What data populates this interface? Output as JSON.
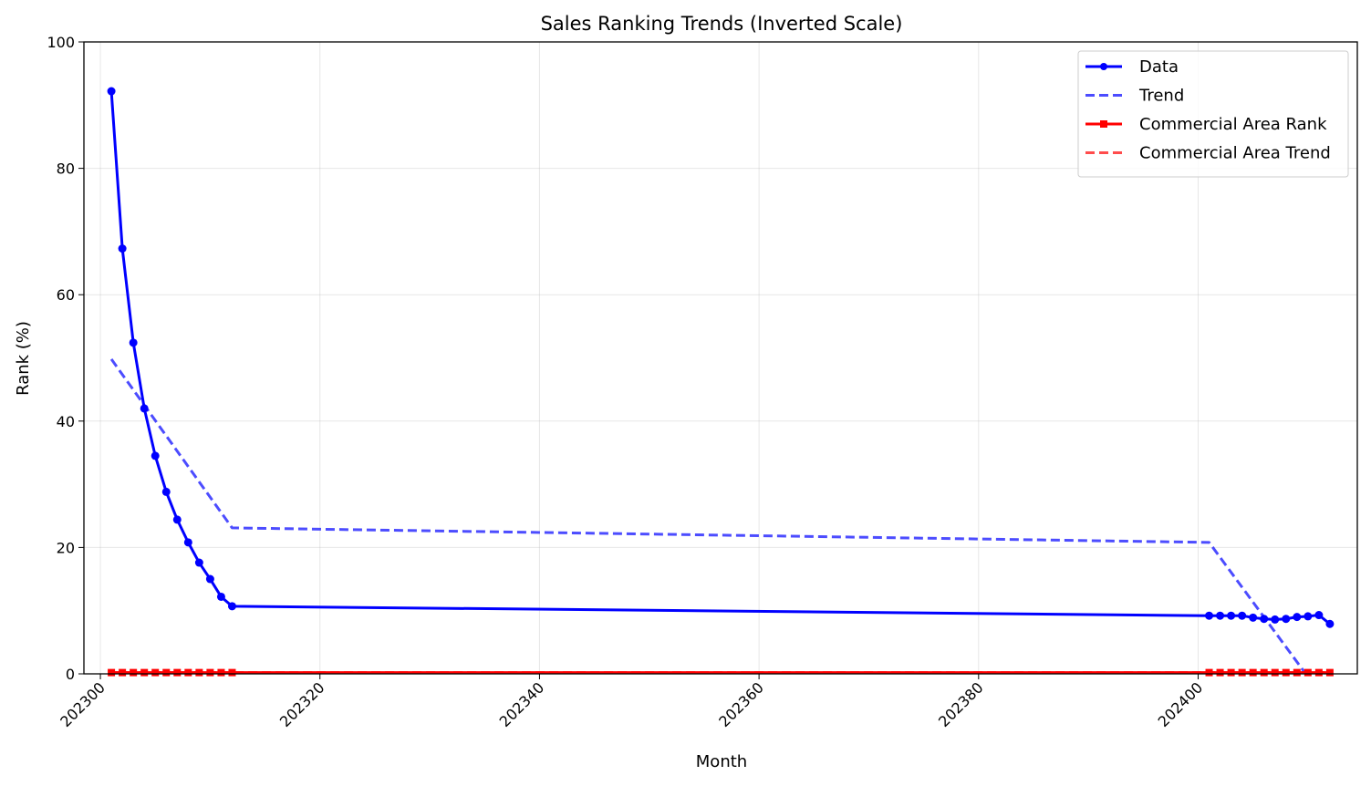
{
  "chart_data": {
    "type": "line",
    "title": "Sales Ranking Trends (Inverted Scale)",
    "xlabel": "Month",
    "ylabel": "Rank (%)",
    "xlim": [
      202298.5,
      202414.5
    ],
    "ylim": [
      0,
      100
    ],
    "xticks": [
      202300,
      202320,
      202340,
      202360,
      202380,
      202400
    ],
    "yticks": [
      0,
      20,
      40,
      60,
      80,
      100
    ],
    "grid": true,
    "legend_position": "top-right",
    "series": [
      {
        "name": "Data",
        "color": "#0000ff",
        "style": "solid",
        "marker": "circle",
        "x": [
          202301,
          202302,
          202303,
          202304,
          202305,
          202306,
          202307,
          202308,
          202309,
          202310,
          202311,
          202312,
          202401,
          202402,
          202403,
          202404,
          202405,
          202406,
          202407,
          202408,
          202409,
          202410,
          202411,
          202412
        ],
        "y": [
          92.2,
          67.3,
          52.4,
          42.0,
          34.5,
          28.8,
          24.4,
          20.8,
          17.6,
          15.0,
          12.2,
          10.7,
          9.2,
          9.2,
          9.2,
          9.2,
          8.9,
          8.7,
          8.6,
          8.7,
          9.0,
          9.1,
          9.3,
          7.9
        ]
      },
      {
        "name": "Trend",
        "color": "#0000ff",
        "opacity": 0.7,
        "style": "dashed",
        "marker": "none",
        "x": [
          202301,
          202312,
          202401,
          202409.8
        ],
        "y": [
          49.8,
          23.1,
          20.8,
          0
        ]
      },
      {
        "name": "Commercial Area Rank",
        "color": "#ff0000",
        "style": "solid",
        "marker": "square",
        "x": [
          202301,
          202302,
          202303,
          202304,
          202305,
          202306,
          202307,
          202308,
          202309,
          202310,
          202311,
          202312,
          202401,
          202402,
          202403,
          202404,
          202405,
          202406,
          202407,
          202408,
          202409,
          202410,
          202411,
          202412
        ],
        "y": [
          0.2,
          0.2,
          0.2,
          0.2,
          0.2,
          0.2,
          0.2,
          0.2,
          0.2,
          0.2,
          0.2,
          0.2,
          0.2,
          0.2,
          0.2,
          0.2,
          0.2,
          0.2,
          0.2,
          0.2,
          0.2,
          0.2,
          0.2,
          0.2
        ]
      },
      {
        "name": "Commercial Area Trend",
        "color": "#ff0000",
        "opacity": 0.7,
        "style": "dashed",
        "marker": "none",
        "x": [
          202301,
          202412
        ],
        "y": [
          0.2,
          0.2
        ]
      }
    ]
  }
}
